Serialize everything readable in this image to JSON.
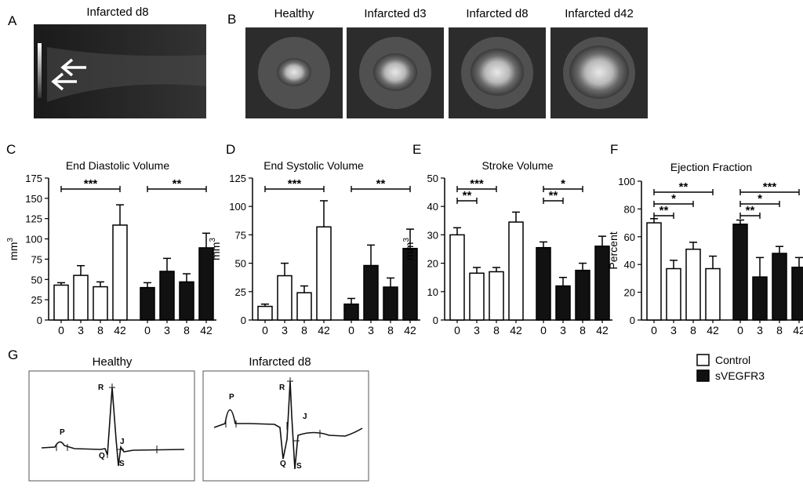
{
  "panels": {
    "a": {
      "letter": "A",
      "title": "Infarcted d8"
    },
    "b": {
      "letter": "B",
      "images": [
        "Healthy",
        "Infarcted d3",
        "Infarcted d8",
        "Infarcted d42"
      ]
    },
    "g": {
      "letter": "G",
      "traces": [
        {
          "title": "Healthy",
          "labels": [
            "P",
            "R",
            "Q",
            "S",
            "J"
          ]
        },
        {
          "title": "Infarcted d8",
          "labels": [
            "P",
            "R",
            "Q",
            "S",
            "J"
          ]
        }
      ]
    }
  },
  "legend": {
    "control": "Control",
    "treated": "sVEGFR3"
  },
  "colors": {
    "control": "#ffffff",
    "treated": "#111111",
    "stroke": "#000000"
  },
  "chart_data": [
    {
      "letter": "C",
      "type": "bar",
      "title": "End Diastolic Volume",
      "ylabel": "mm",
      "ylabel_sup": "3",
      "ylim": [
        0,
        175
      ],
      "yticks": [
        0,
        25,
        50,
        75,
        100,
        125,
        150,
        175
      ],
      "categories": [
        "0",
        "3",
        "8",
        "42"
      ],
      "series": [
        {
          "values": [
            43,
            55,
            41,
            117
          ],
          "errors": [
            3,
            12,
            6,
            25
          ]
        },
        {
          "values": [
            40,
            60,
            47,
            89
          ],
          "errors": [
            6,
            16,
            10,
            18
          ]
        }
      ],
      "significance": [
        {
          "from": [
            0,
            0
          ],
          "to": [
            0,
            3
          ],
          "label": "***"
        },
        {
          "from": [
            1,
            0
          ],
          "to": [
            1,
            3
          ],
          "label": "**"
        }
      ]
    },
    {
      "letter": "D",
      "type": "bar",
      "title": "End Systolic Volume",
      "ylabel": "mm",
      "ylabel_sup": "3",
      "ylim": [
        0,
        125
      ],
      "yticks": [
        0,
        25,
        50,
        75,
        100,
        125
      ],
      "categories": [
        "0",
        "3",
        "8",
        "42"
      ],
      "series": [
        {
          "values": [
            12,
            39,
            24,
            82
          ],
          "errors": [
            2,
            11,
            6,
            23
          ]
        },
        {
          "values": [
            14,
            48,
            29,
            63
          ],
          "errors": [
            5,
            18,
            8,
            17
          ]
        }
      ],
      "significance": [
        {
          "from": [
            0,
            0
          ],
          "to": [
            0,
            3
          ],
          "label": "***"
        },
        {
          "from": [
            1,
            0
          ],
          "to": [
            1,
            3
          ],
          "label": "**"
        }
      ]
    },
    {
      "letter": "E",
      "type": "bar",
      "title": "Stroke Volume",
      "ylabel": "mm",
      "ylabel_sup": "3",
      "ylim": [
        0,
        50
      ],
      "yticks": [
        0,
        10,
        20,
        30,
        40,
        50
      ],
      "categories": [
        "0",
        "3",
        "8",
        "42"
      ],
      "series": [
        {
          "values": [
            30,
            16.5,
            17,
            34.5
          ],
          "errors": [
            2.5,
            2,
            1.5,
            3.5
          ]
        },
        {
          "values": [
            25.5,
            12,
            17.5,
            26
          ],
          "errors": [
            2,
            3,
            2.5,
            3.5
          ]
        }
      ],
      "significance": [
        {
          "from": [
            0,
            0
          ],
          "to": [
            0,
            1
          ],
          "label": "**"
        },
        {
          "from": [
            0,
            0
          ],
          "to": [
            0,
            2
          ],
          "label": "***"
        },
        {
          "from": [
            1,
            0
          ],
          "to": [
            1,
            1
          ],
          "label": "**"
        },
        {
          "from": [
            1,
            0
          ],
          "to": [
            1,
            2
          ],
          "label": "*"
        }
      ]
    },
    {
      "letter": "F",
      "type": "bar",
      "title": "Ejection Fraction",
      "ylabel": "Percent",
      "ylabel_sup": "",
      "ylim": [
        0,
        100
      ],
      "yticks": [
        0,
        20,
        40,
        60,
        80,
        100
      ],
      "categories": [
        "0",
        "3",
        "8",
        "42"
      ],
      "series": [
        {
          "values": [
            70,
            37,
            51,
            37
          ],
          "errors": [
            3,
            6,
            5,
            9
          ]
        },
        {
          "values": [
            69,
            31,
            48,
            38
          ],
          "errors": [
            3,
            14,
            5,
            7
          ]
        }
      ],
      "significance": [
        {
          "from": [
            0,
            0
          ],
          "to": [
            0,
            1
          ],
          "label": "**"
        },
        {
          "from": [
            0,
            0
          ],
          "to": [
            0,
            2
          ],
          "label": "*"
        },
        {
          "from": [
            0,
            0
          ],
          "to": [
            0,
            3
          ],
          "label": "**"
        },
        {
          "from": [
            1,
            0
          ],
          "to": [
            1,
            1
          ],
          "label": "**"
        },
        {
          "from": [
            1,
            0
          ],
          "to": [
            1,
            2
          ],
          "label": "*"
        },
        {
          "from": [
            1,
            0
          ],
          "to": [
            1,
            3
          ],
          "label": "***"
        }
      ]
    }
  ]
}
